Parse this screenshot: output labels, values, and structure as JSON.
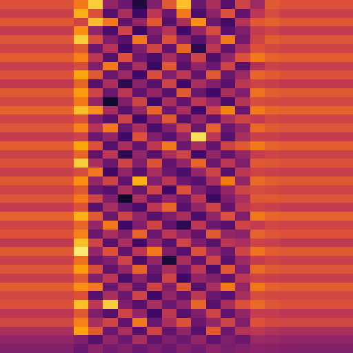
{
  "chart_data": {
    "type": "heatmap",
    "color": "inferno",
    "tick_labels": false,
    "zlim": [
      0,
      100
    ],
    "cells": [
      [
        60,
        60,
        60,
        60,
        60,
        70,
        88,
        40,
        30,
        12,
        35,
        62,
        85,
        30,
        45,
        25,
        55,
        42,
        62,
        60,
        60,
        60,
        60,
        60
      ],
      [
        54,
        54,
        54,
        54,
        54,
        82,
        60,
        25,
        45,
        20,
        50,
        30,
        70,
        22,
        38,
        60,
        28,
        50,
        58,
        54,
        54,
        54,
        54,
        54
      ],
      [
        62,
        62,
        62,
        62,
        62,
        55,
        85,
        70,
        28,
        40,
        62,
        25,
        45,
        75,
        30,
        20,
        48,
        62,
        64,
        62,
        62,
        62,
        62,
        62
      ],
      [
        52,
        52,
        52,
        52,
        52,
        75,
        40,
        22,
        55,
        18,
        35,
        48,
        20,
        40,
        58,
        25,
        35,
        52,
        55,
        52,
        52,
        52,
        52,
        52
      ],
      [
        61,
        61,
        61,
        61,
        61,
        88,
        58,
        35,
        25,
        70,
        30,
        60,
        38,
        25,
        42,
        70,
        32,
        55,
        63,
        61,
        61,
        61,
        61,
        61
      ],
      [
        55,
        55,
        55,
        55,
        55,
        62,
        30,
        48,
        20,
        35,
        55,
        28,
        65,
        15,
        50,
        28,
        45,
        60,
        57,
        55,
        55,
        55,
        55,
        55
      ],
      [
        63,
        63,
        63,
        63,
        63,
        72,
        50,
        25,
        60,
        30,
        22,
        45,
        30,
        55,
        24,
        40,
        60,
        70,
        64,
        63,
        63,
        63,
        63,
        63
      ],
      [
        53,
        53,
        53,
        53,
        53,
        58,
        35,
        70,
        28,
        45,
        18,
        62,
        25,
        40,
        30,
        55,
        25,
        48,
        54,
        53,
        53,
        53,
        53,
        53
      ],
      [
        60,
        60,
        60,
        60,
        60,
        80,
        62,
        30,
        42,
        20,
        58,
        35,
        50,
        28,
        62,
        30,
        42,
        65,
        62,
        60,
        60,
        60,
        60,
        60
      ],
      [
        51,
        51,
        51,
        51,
        51,
        65,
        25,
        45,
        15,
        38,
        25,
        55,
        20,
        45,
        35,
        25,
        50,
        55,
        53,
        51,
        51,
        51,
        51,
        51
      ],
      [
        62,
        62,
        62,
        62,
        62,
        78,
        55,
        30,
        50,
        28,
        40,
        25,
        62,
        30,
        20,
        45,
        35,
        68,
        63,
        62,
        62,
        62,
        62,
        62
      ],
      [
        56,
        56,
        56,
        56,
        56,
        70,
        40,
        8,
        35,
        55,
        20,
        45,
        28,
        50,
        40,
        22,
        48,
        58,
        57,
        56,
        56,
        56,
        56,
        56
      ],
      [
        64,
        64,
        64,
        64,
        64,
        85,
        75,
        45,
        25,
        40,
        65,
        30,
        45,
        20,
        55,
        72,
        30,
        70,
        65,
        64,
        64,
        64,
        64,
        64
      ],
      [
        55,
        55,
        55,
        55,
        55,
        60,
        35,
        25,
        55,
        20,
        38,
        62,
        25,
        40,
        28,
        45,
        55,
        52,
        56,
        55,
        55,
        55,
        55,
        55
      ],
      [
        61,
        61,
        61,
        61,
        61,
        72,
        48,
        70,
        30,
        45,
        22,
        35,
        55,
        30,
        65,
        30,
        40,
        66,
        62,
        61,
        61,
        61,
        61,
        61
      ],
      [
        52,
        52,
        52,
        52,
        52,
        55,
        30,
        40,
        20,
        60,
        35,
        25,
        40,
        92,
        50,
        25,
        45,
        54,
        54,
        52,
        52,
        52,
        52,
        52
      ],
      [
        63,
        63,
        63,
        63,
        63,
        80,
        60,
        25,
        45,
        28,
        50,
        70,
        30,
        45,
        28,
        55,
        62,
        70,
        64,
        63,
        63,
        63,
        63,
        63
      ],
      [
        54,
        54,
        54,
        54,
        54,
        65,
        28,
        50,
        15,
        40,
        25,
        45,
        55,
        20,
        40,
        28,
        40,
        52,
        55,
        54,
        54,
        54,
        54,
        54
      ],
      [
        60,
        60,
        60,
        60,
        60,
        88,
        45,
        30,
        55,
        35,
        60,
        28,
        40,
        65,
        30,
        50,
        35,
        62,
        61,
        60,
        60,
        60,
        60,
        60
      ],
      [
        53,
        53,
        53,
        53,
        53,
        58,
        70,
        20,
        40,
        25,
        45,
        30,
        22,
        40,
        55,
        25,
        50,
        55,
        54,
        53,
        53,
        53,
        53,
        53
      ],
      [
        62,
        62,
        62,
        62,
        62,
        75,
        40,
        55,
        28,
        82,
        35,
        50,
        30,
        25,
        45,
        70,
        40,
        66,
        63,
        62,
        62,
        62,
        62,
        62
      ],
      [
        55,
        55,
        55,
        55,
        55,
        62,
        30,
        25,
        45,
        30,
        55,
        20,
        60,
        35,
        25,
        40,
        55,
        58,
        56,
        55,
        55,
        55,
        55,
        55
      ],
      [
        61,
        61,
        61,
        61,
        61,
        70,
        55,
        35,
        8,
        45,
        28,
        40,
        30,
        50,
        18,
        35,
        45,
        62,
        62,
        61,
        61,
        61,
        61,
        61
      ],
      [
        52,
        52,
        52,
        52,
        52,
        60,
        25,
        45,
        30,
        22,
        50,
        65,
        25,
        40,
        55,
        28,
        50,
        55,
        54,
        52,
        52,
        52,
        52,
        52
      ],
      [
        64,
        64,
        64,
        64,
        64,
        82,
        62,
        30,
        55,
        40,
        25,
        35,
        45,
        22,
        40,
        60,
        35,
        70,
        65,
        64,
        64,
        64,
        64,
        64
      ],
      [
        55,
        55,
        55,
        55,
        55,
        65,
        40,
        70,
        20,
        35,
        55,
        28,
        15,
        50,
        30,
        25,
        55,
        52,
        56,
        55,
        55,
        55,
        55,
        55
      ],
      [
        60,
        60,
        60,
        60,
        60,
        72,
        30,
        45,
        35,
        65,
        30,
        50,
        40,
        28,
        62,
        40,
        38,
        64,
        61,
        60,
        60,
        60,
        60,
        60
      ],
      [
        51,
        51,
        51,
        51,
        51,
        85,
        55,
        25,
        45,
        20,
        40,
        25,
        55,
        35,
        25,
        50,
        45,
        55,
        53,
        51,
        51,
        51,
        51,
        51
      ],
      [
        62,
        62,
        62,
        62,
        62,
        95,
        40,
        60,
        28,
        50,
        70,
        35,
        25,
        60,
        40,
        30,
        55,
        68,
        63,
        62,
        62,
        62,
        62,
        62
      ],
      [
        54,
        54,
        54,
        54,
        54,
        68,
        30,
        35,
        55,
        22,
        40,
        10,
        45,
        28,
        55,
        25,
        42,
        52,
        55,
        54,
        54,
        54,
        54,
        54
      ],
      [
        61,
        61,
        61,
        61,
        61,
        78,
        58,
        28,
        40,
        65,
        30,
        45,
        30,
        50,
        22,
        62,
        35,
        66,
        62,
        61,
        61,
        61,
        61,
        61
      ],
      [
        53,
        53,
        53,
        53,
        53,
        62,
        35,
        50,
        22,
        38,
        25,
        55,
        20,
        40,
        35,
        28,
        50,
        55,
        54,
        53,
        53,
        53,
        53,
        53
      ],
      [
        63,
        63,
        63,
        63,
        63,
        75,
        70,
        30,
        45,
        28,
        55,
        35,
        62,
        25,
        45,
        70,
        40,
        70,
        64,
        63,
        63,
        63,
        63,
        63
      ],
      [
        56,
        56,
        56,
        56,
        56,
        60,
        25,
        45,
        30,
        55,
        20,
        40,
        28,
        50,
        30,
        25,
        45,
        58,
        57,
        56,
        56,
        56,
        56,
        56
      ],
      [
        60,
        60,
        60,
        60,
        60,
        85,
        50,
        88,
        35,
        25,
        45,
        30,
        40,
        65,
        25,
        45,
        60,
        66,
        61,
        60,
        60,
        60,
        60,
        60
      ],
      [
        50,
        50,
        50,
        50,
        50,
        62,
        35,
        25,
        55,
        40,
        20,
        50,
        25,
        35,
        55,
        28,
        40,
        52,
        52,
        50,
        50,
        50,
        50,
        50
      ],
      [
        56,
        56,
        56,
        56,
        56,
        72,
        45,
        55,
        28,
        70,
        30,
        45,
        60,
        30,
        40,
        55,
        35,
        60,
        57,
        56,
        56,
        56,
        56,
        56
      ],
      [
        45,
        45,
        45,
        45,
        45,
        80,
        62,
        30,
        45,
        25,
        55,
        28,
        40,
        25,
        62,
        30,
        48,
        50,
        47,
        45,
        45,
        45,
        45,
        45
      ],
      [
        40,
        40,
        40,
        40,
        40,
        35,
        25,
        40,
        30,
        45,
        28,
        35,
        30,
        40,
        28,
        35,
        30,
        42,
        41,
        40,
        40,
        40,
        40,
        40
      ],
      [
        36,
        36,
        36,
        36,
        36,
        30,
        38,
        32,
        36,
        30,
        34,
        30,
        36,
        32,
        38,
        34,
        36,
        38,
        37,
        36,
        36,
        36,
        36,
        36
      ]
    ]
  }
}
